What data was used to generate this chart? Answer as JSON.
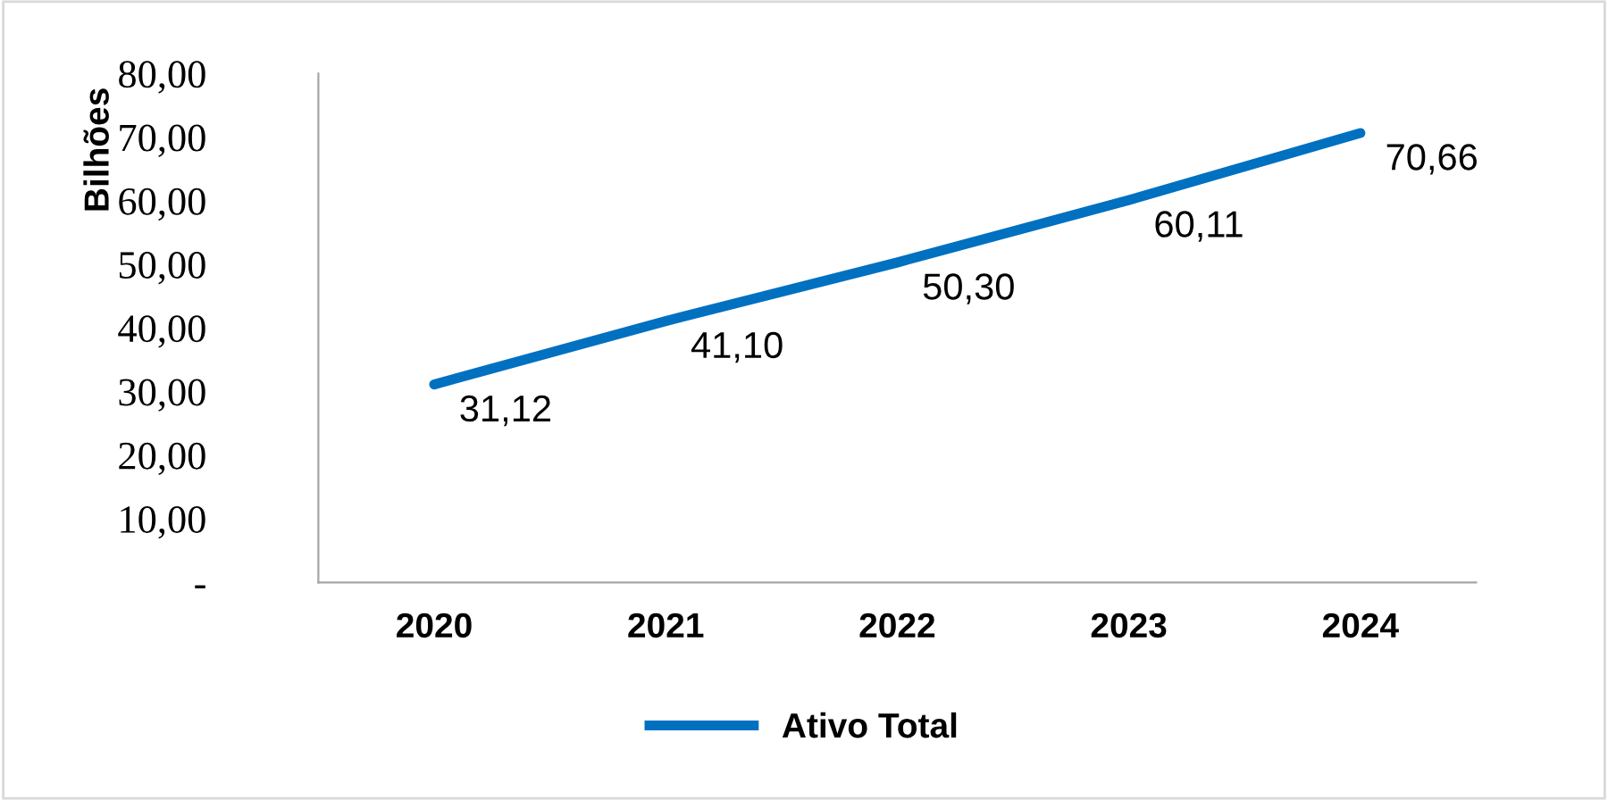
{
  "chart_data": {
    "type": "line",
    "ylabel": "Bilhões",
    "categories": [
      "2020",
      "2021",
      "2022",
      "2023",
      "2024"
    ],
    "series": [
      {
        "name": "Ativo Total",
        "color": "#0070c0",
        "values": [
          31.12,
          41.1,
          50.3,
          60.11,
          70.66
        ],
        "value_labels": [
          "31,12",
          "41,10",
          "50,30",
          "60,11",
          "70,66"
        ]
      }
    ],
    "ylim": [
      0,
      80
    ],
    "yticks": [
      {
        "value": 0,
        "label": "-"
      },
      {
        "value": 10,
        "label": "10,00"
      },
      {
        "value": 20,
        "label": "20,00"
      },
      {
        "value": 30,
        "label": "30,00"
      },
      {
        "value": 40,
        "label": "40,00"
      },
      {
        "value": 50,
        "label": "50,00"
      },
      {
        "value": 60,
        "label": "60,00"
      },
      {
        "value": 70,
        "label": "70,00"
      },
      {
        "value": 80,
        "label": "80,00"
      }
    ],
    "grid": false,
    "legend": "bottom",
    "marker": "none",
    "line_style": "solid"
  }
}
